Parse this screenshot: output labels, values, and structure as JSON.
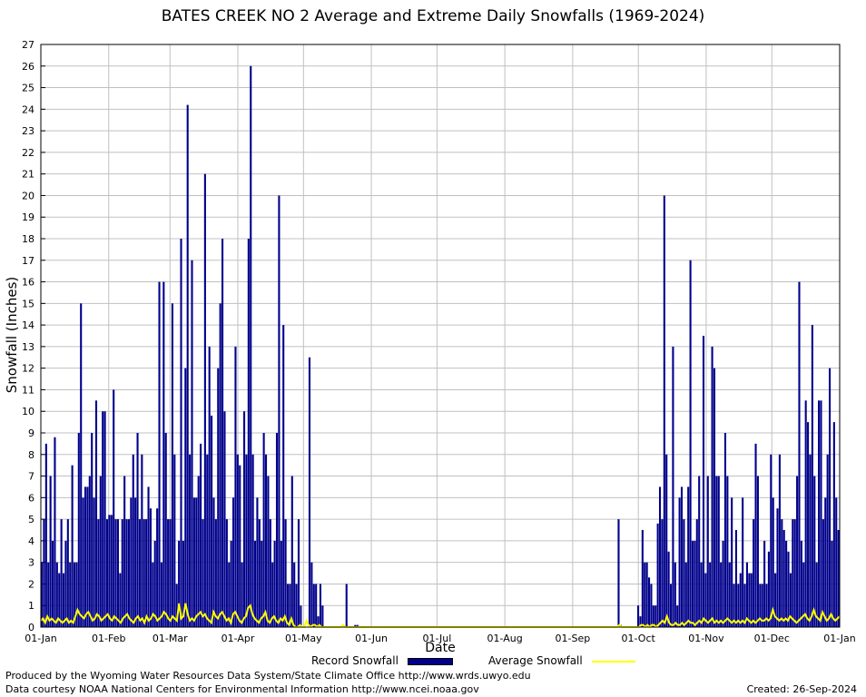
{
  "chart_data": {
    "type": "bar",
    "title": "BATES CREEK NO 2 Average and Extreme Daily Snowfalls (1969-2024)",
    "xlabel": "Date",
    "ylabel": "Snowfall (Inches)",
    "ylim": [
      0,
      27
    ],
    "yticks": [
      "0",
      "1",
      "2",
      "3",
      "4",
      "5",
      "6",
      "7",
      "8",
      "9",
      "10",
      "11",
      "12",
      "13",
      "14",
      "15",
      "16",
      "17",
      "18",
      "19",
      "20",
      "21",
      "22",
      "23",
      "24",
      "25",
      "26",
      "27"
    ],
    "xticks": [
      {
        "label": "01-Jan",
        "day": 1
      },
      {
        "label": "01-Feb",
        "day": 32
      },
      {
        "label": "01-Mar",
        "day": 60
      },
      {
        "label": "01-Apr",
        "day": 91
      },
      {
        "label": "01-May",
        "day": 121
      },
      {
        "label": "01-Jun",
        "day": 152
      },
      {
        "label": "01-Jul",
        "day": 182
      },
      {
        "label": "01-Aug",
        "day": 213
      },
      {
        "label": "01-Sep",
        "day": 244
      },
      {
        "label": "01-Oct",
        "day": 274
      },
      {
        "label": "01-Nov",
        "day": 305
      },
      {
        "label": "01-Dec",
        "day": 335
      },
      {
        "label": "01-Jan",
        "day": 366
      }
    ],
    "grid": true,
    "legend_placement": "bottom",
    "series": [
      {
        "name": "Record Snowfall",
        "color": "#00008b",
        "values": [
          3,
          5,
          8.5,
          3,
          7,
          4,
          8.8,
          3,
          2.5,
          5,
          2.5,
          4,
          5,
          3,
          7.5,
          3,
          3,
          9,
          15,
          6,
          6.5,
          6.5,
          7,
          9,
          6,
          10.5,
          5,
          7,
          10,
          10,
          5,
          5.2,
          5.2,
          11,
          5,
          5,
          2.5,
          5,
          7,
          5,
          5,
          6,
          8,
          6,
          9,
          5,
          8,
          5,
          5,
          6.5,
          5.5,
          3,
          4,
          5.5,
          16,
          3,
          16,
          9,
          5,
          5,
          15,
          8,
          2,
          4,
          18,
          4,
          12,
          24.2,
          8,
          17,
          6,
          6,
          7,
          8.5,
          5,
          21,
          8,
          13,
          9.8,
          6,
          5,
          12,
          15,
          18,
          10,
          5,
          3,
          4,
          6,
          13,
          8,
          7.5,
          3,
          10,
          8,
          18,
          26,
          8,
          4,
          6,
          5,
          4,
          9,
          8,
          7,
          5,
          3,
          4,
          9,
          20,
          4,
          14,
          5,
          2,
          2,
          7,
          3,
          2,
          5,
          1,
          0,
          0,
          0,
          12.5,
          3,
          2,
          2,
          0.5,
          2,
          1,
          0,
          0,
          0,
          0,
          0,
          0,
          0,
          0,
          0,
          0,
          2,
          0,
          0,
          0,
          0.1,
          0.1,
          0,
          0,
          0,
          0,
          0,
          0,
          0,
          0,
          0,
          0,
          0,
          0,
          0,
          0,
          0,
          0,
          0,
          0,
          0,
          0,
          0,
          0,
          0,
          0,
          0,
          0,
          0,
          0,
          0,
          0,
          0,
          0,
          0,
          0,
          0,
          0,
          0,
          0,
          0,
          0,
          0,
          0,
          0,
          0,
          0,
          0,
          0,
          0,
          0,
          0,
          0,
          0,
          0,
          0,
          0,
          0,
          0,
          0,
          0,
          0,
          0,
          0,
          0,
          0,
          0,
          0,
          0,
          0,
          0,
          0,
          0,
          0,
          0,
          0,
          0,
          0,
          0,
          0,
          0,
          0,
          0,
          0,
          0,
          0,
          0,
          0,
          0,
          0,
          0,
          0,
          0,
          0,
          0,
          0,
          0,
          0,
          0,
          0,
          0,
          0,
          0,
          0,
          0,
          0,
          0,
          0,
          0,
          0,
          0,
          0,
          0,
          0,
          0,
          0,
          0,
          0,
          0,
          0,
          0,
          5,
          0.1,
          0,
          0,
          0,
          0,
          0,
          0,
          0,
          1,
          0.5,
          4.5,
          3,
          3,
          2.3,
          2,
          1,
          1,
          4.8,
          6.5,
          5,
          20,
          8,
          3.5,
          2,
          13,
          3,
          1,
          6,
          6.5,
          5,
          3,
          6.5,
          17,
          4,
          4,
          5,
          7,
          3,
          13.5,
          2.5,
          7,
          3,
          13,
          12,
          7,
          7,
          3,
          4,
          9,
          7,
          3,
          6,
          2,
          4.5,
          2,
          2.5,
          6,
          2,
          3,
          2.5,
          2.5,
          5,
          8.5,
          7,
          2,
          2,
          4,
          2,
          3.5,
          8,
          6,
          2.5,
          5.5,
          8,
          5,
          4.5,
          4,
          3.5,
          2.5,
          5,
          5,
          7,
          16,
          4,
          3,
          10.5,
          9.5,
          8,
          14,
          7,
          3,
          10.5,
          10.5,
          5,
          6,
          8,
          12,
          4,
          9.5,
          6,
          4.5
        ]
      },
      {
        "name": "Average Snowfall",
        "color": "#ffff00",
        "values": [
          0.3,
          0.4,
          0.2,
          0.5,
          0.3,
          0.4,
          0.3,
          0.2,
          0.4,
          0.3,
          0.2,
          0.3,
          0.4,
          0.2,
          0.3,
          0.2,
          0.5,
          0.8,
          0.6,
          0.5,
          0.4,
          0.6,
          0.7,
          0.5,
          0.3,
          0.4,
          0.6,
          0.5,
          0.3,
          0.4,
          0.5,
          0.6,
          0.4,
          0.3,
          0.5,
          0.4,
          0.3,
          0.2,
          0.4,
          0.5,
          0.6,
          0.4,
          0.3,
          0.2,
          0.4,
          0.5,
          0.3,
          0.4,
          0.2,
          0.5,
          0.3,
          0.4,
          0.6,
          0.5,
          0.3,
          0.4,
          0.5,
          0.7,
          0.6,
          0.4,
          0.3,
          0.5,
          0.4,
          0.3,
          1.1,
          0.4,
          0.5,
          1.1,
          0.6,
          0.3,
          0.4,
          0.3,
          0.5,
          0.6,
          0.7,
          0.5,
          0.6,
          0.4,
          0.3,
          0.2,
          0.7,
          0.5,
          0.4,
          0.6,
          0.7,
          0.5,
          0.3,
          0.4,
          0.2,
          0.6,
          0.7,
          0.5,
          0.3,
          0.2,
          0.4,
          0.5,
          0.9,
          1.0,
          0.6,
          0.4,
          0.3,
          0.2,
          0.4,
          0.5,
          0.7,
          0.3,
          0.2,
          0.4,
          0.5,
          0.3,
          0.2,
          0.4,
          0.3,
          0.5,
          0.2,
          0.1,
          0.4,
          0.1,
          0.0,
          0.0,
          0.1,
          0.0,
          0.0,
          0.3,
          0.1,
          0.0,
          0.1,
          0.1,
          0.0,
          0.1,
          0.0,
          0.0,
          0.0,
          0.0,
          0.0,
          0.0,
          0.0,
          0.0,
          0.0,
          0.0,
          0.1,
          0.0,
          0.0,
          0.0,
          0.0,
          0.0,
          0.0,
          0.0,
          0.0,
          0.0,
          0.0,
          0.0,
          0.0,
          0.0,
          0.0,
          0.0,
          0.0,
          0.0,
          0.0,
          0.0,
          0.0,
          0.0,
          0.0,
          0.0,
          0.0,
          0.0,
          0.0,
          0.0,
          0.0,
          0.0,
          0.0,
          0.0,
          0.0,
          0.0,
          0.0,
          0.0,
          0.0,
          0.0,
          0.0,
          0.0,
          0.0,
          0.0,
          0.0,
          0.0,
          0.0,
          0.0,
          0.0,
          0.0,
          0.0,
          0.0,
          0.0,
          0.0,
          0.0,
          0.0,
          0.0,
          0.0,
          0.0,
          0.0,
          0.0,
          0.0,
          0.0,
          0.0,
          0.0,
          0.0,
          0.0,
          0.0,
          0.0,
          0.0,
          0.0,
          0.0,
          0.0,
          0.0,
          0.0,
          0.0,
          0.0,
          0.0,
          0.0,
          0.0,
          0.0,
          0.0,
          0.0,
          0.0,
          0.0,
          0.0,
          0.0,
          0.0,
          0.0,
          0.0,
          0.0,
          0.0,
          0.0,
          0.0,
          0.0,
          0.0,
          0.0,
          0.0,
          0.0,
          0.0,
          0.0,
          0.0,
          0.0,
          0.0,
          0.0,
          0.0,
          0.0,
          0.0,
          0.0,
          0.0,
          0.0,
          0.0,
          0.0,
          0.0,
          0.0,
          0.0,
          0.0,
          0.0,
          0.0,
          0.0,
          0.0,
          0.0,
          0.0,
          0.0,
          0.0,
          0.0,
          0.0,
          0.0,
          0.0,
          0.0,
          0.1,
          0.0,
          0.0,
          0.0,
          0.0,
          0.0,
          0.0,
          0.0,
          0.0,
          0.0,
          0.1,
          0.1,
          0.0,
          0.1,
          0.0,
          0.1,
          0.1,
          0.0,
          0.1,
          0.2,
          0.3,
          0.2,
          0.5,
          0.2,
          0.1,
          0.1,
          0.2,
          0.1,
          0.1,
          0.2,
          0.1,
          0.2,
          0.3,
          0.2,
          0.2,
          0.1,
          0.2,
          0.3,
          0.2,
          0.4,
          0.3,
          0.2,
          0.3,
          0.4,
          0.2,
          0.3,
          0.2,
          0.3,
          0.2,
          0.3,
          0.4,
          0.3,
          0.2,
          0.3,
          0.2,
          0.3,
          0.2,
          0.3,
          0.2,
          0.4,
          0.3,
          0.2,
          0.3,
          0.2,
          0.3,
          0.4,
          0.3,
          0.3,
          0.4,
          0.3,
          0.4,
          0.8,
          0.5,
          0.4,
          0.3,
          0.4,
          0.3,
          0.4,
          0.3,
          0.5,
          0.4,
          0.3,
          0.2,
          0.3,
          0.4,
          0.5,
          0.6,
          0.4,
          0.3,
          0.5,
          0.8,
          0.5,
          0.4,
          0.3,
          0.7,
          0.5,
          0.3,
          0.4,
          0.6,
          0.4,
          0.3,
          0.4,
          0.5
        ]
      }
    ]
  },
  "footer": {
    "produced_by": "Produced by the Wyoming Water Resources Data System/State Climate Office http://www.wrds.uwyo.edu",
    "courtesy": "Data courtesy NOAA National Centers for Environmental Information http://www.ncei.noaa.gov",
    "created": "Created:  26-Sep-2024"
  }
}
